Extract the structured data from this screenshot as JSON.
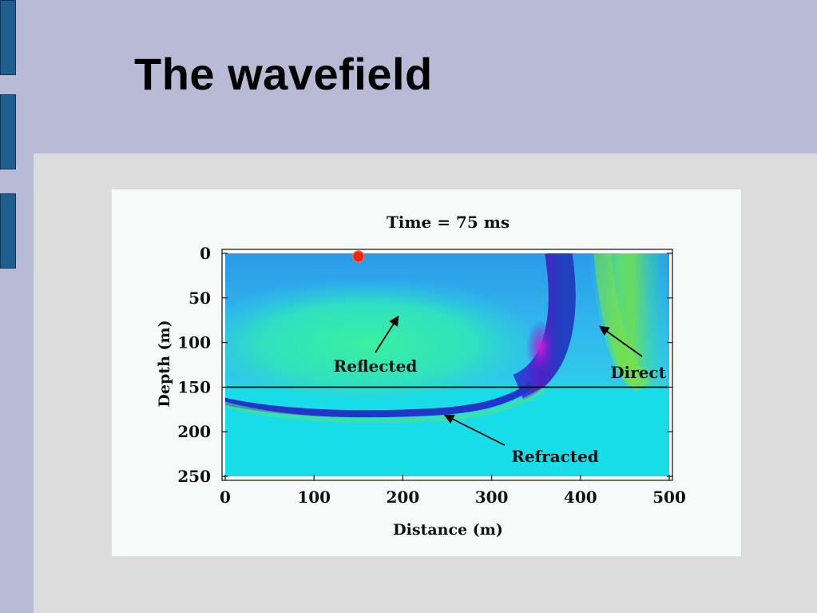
{
  "slide": {
    "title": "The wavefield"
  },
  "figure": {
    "title": "Time = 75 ms",
    "xlabel": "Distance (m)",
    "ylabel": "Depth (m)",
    "annotations": {
      "reflected": "Reflected",
      "direct": "Direct",
      "refracted": "Refracted"
    }
  },
  "chart_data": {
    "type": "heatmap",
    "title": "Time = 75 ms",
    "xlabel": "Distance (m)",
    "ylabel": "Depth (m)",
    "xlim": [
      0,
      500
    ],
    "ylim": [
      0,
      250
    ],
    "y_inverted": true,
    "x_ticks": [
      0,
      100,
      200,
      300,
      400,
      500
    ],
    "y_ticks": [
      0,
      50,
      100,
      150,
      200,
      250
    ],
    "source": {
      "x": 150,
      "y": 0,
      "color": "#e8241c"
    },
    "interface_depth": 150,
    "annotations": [
      "Reflected",
      "Direct",
      "Refracted"
    ]
  }
}
